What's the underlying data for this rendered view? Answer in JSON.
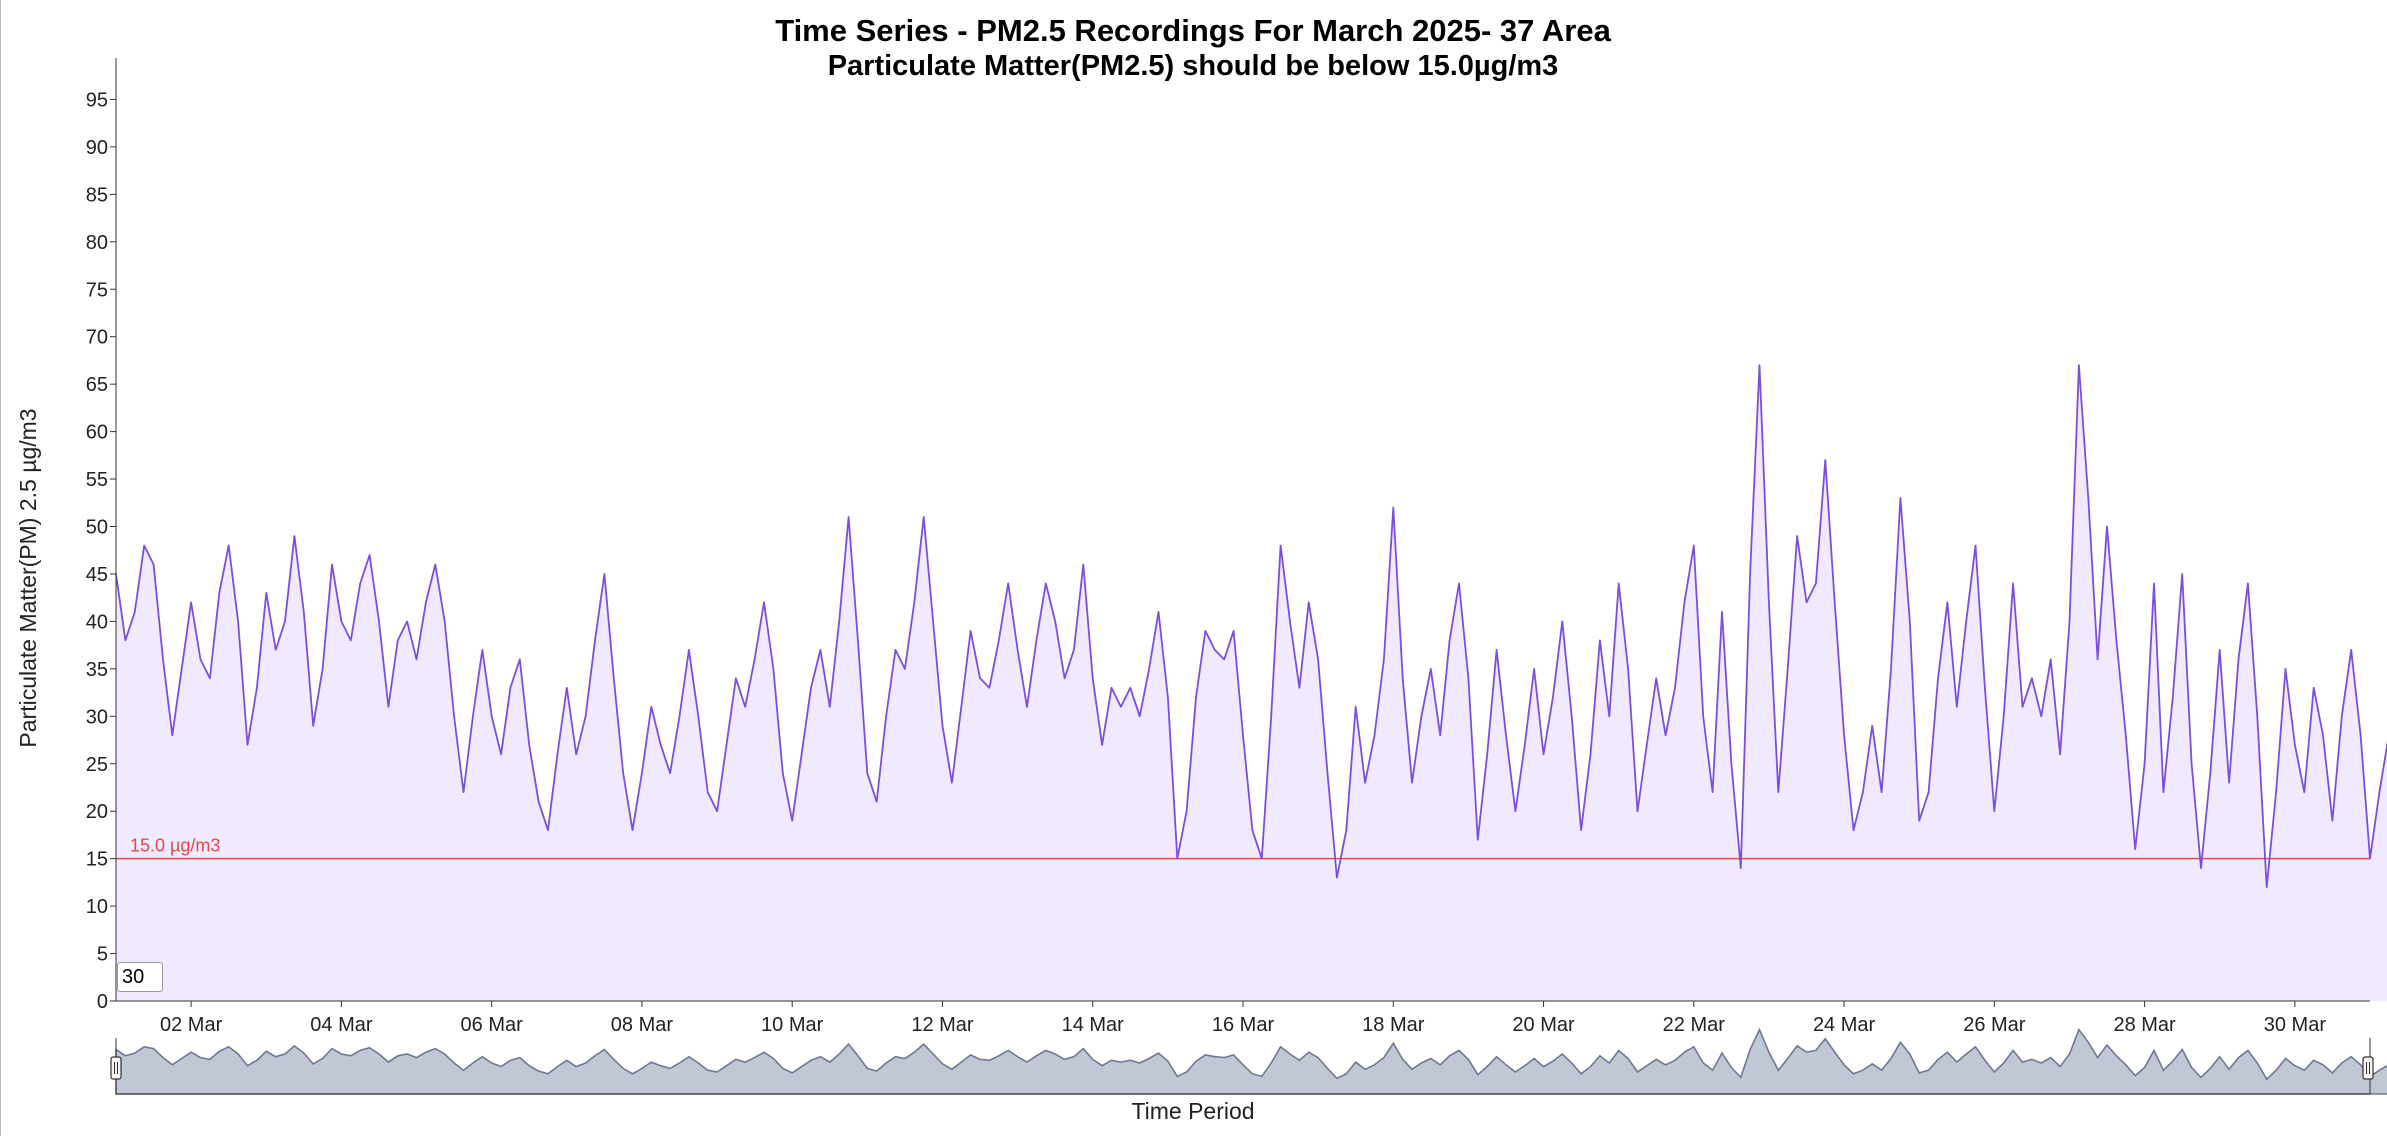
{
  "chart_data": {
    "type": "area",
    "title": "Time Series - PM2.5 Recordings For March 2025- 37 Area",
    "subtitle": "Particulate Matter(PM2.5) should be below 15.0µg/m3",
    "xlabel": "Time Period",
    "ylabel": "Particulate Matter(PM) 2.5 µg/m3",
    "xlim": [
      "2025-03-01T00:00",
      "2025-03-31T00:00"
    ],
    "ylim": [
      0,
      100
    ],
    "yticks": [
      0,
      5,
      10,
      15,
      20,
      25,
      30,
      35,
      40,
      45,
      50,
      55,
      60,
      65,
      70,
      75,
      80,
      85,
      90,
      95
    ],
    "xtick_labels": [
      "02 Mar",
      "04 Mar",
      "06 Mar",
      "08 Mar",
      "10 Mar",
      "12 Mar",
      "14 Mar",
      "16 Mar",
      "18 Mar",
      "20 Mar",
      "22 Mar",
      "24 Mar",
      "26 Mar",
      "28 Mar",
      "30 Mar"
    ],
    "threshold": {
      "value": 15,
      "label": "15.0 µg/m3",
      "color": "#e8474b"
    },
    "grid": false,
    "legend": "none",
    "series": [
      {
        "color": "#7a4fe0",
        "fill": "#f1e9fd",
        "points": [
          [
            "2025-03-01T00:00",
            45
          ],
          [
            "2025-03-01T03:00",
            38
          ],
          [
            "2025-03-01T06:00",
            41
          ],
          [
            "2025-03-01T09:00",
            48
          ],
          [
            "2025-03-01T12:00",
            46
          ],
          [
            "2025-03-01T15:00",
            36
          ],
          [
            "2025-03-01T18:00",
            28
          ],
          [
            "2025-03-01T21:00",
            35
          ],
          [
            "2025-03-02T00:00",
            42
          ],
          [
            "2025-03-02T03:00",
            36
          ],
          [
            "2025-03-02T06:00",
            34
          ],
          [
            "2025-03-02T09:00",
            43
          ],
          [
            "2025-03-02T12:00",
            48
          ],
          [
            "2025-03-02T15:00",
            40
          ],
          [
            "2025-03-02T18:00",
            27
          ],
          [
            "2025-03-02T21:00",
            33
          ],
          [
            "2025-03-03T00:00",
            43
          ],
          [
            "2025-03-03T03:00",
            37
          ],
          [
            "2025-03-03T06:00",
            40
          ],
          [
            "2025-03-03T09:00",
            49
          ],
          [
            "2025-03-03T12:00",
            41
          ],
          [
            "2025-03-03T15:00",
            29
          ],
          [
            "2025-03-03T18:00",
            35
          ],
          [
            "2025-03-03T21:00",
            46
          ],
          [
            "2025-03-04T00:00",
            40
          ],
          [
            "2025-03-04T03:00",
            38
          ],
          [
            "2025-03-04T06:00",
            44
          ],
          [
            "2025-03-04T09:00",
            47
          ],
          [
            "2025-03-04T12:00",
            40
          ],
          [
            "2025-03-04T15:00",
            31
          ],
          [
            "2025-03-04T18:00",
            38
          ],
          [
            "2025-03-04T21:00",
            40
          ],
          [
            "2025-03-05T00:00",
            36
          ],
          [
            "2025-03-05T03:00",
            42
          ],
          [
            "2025-03-05T06:00",
            46
          ],
          [
            "2025-03-05T09:00",
            40
          ],
          [
            "2025-03-05T12:00",
            30
          ],
          [
            "2025-03-05T15:00",
            22
          ],
          [
            "2025-03-05T18:00",
            30
          ],
          [
            "2025-03-05T21:00",
            37
          ],
          [
            "2025-03-06T00:00",
            30
          ],
          [
            "2025-03-06T03:00",
            26
          ],
          [
            "2025-03-06T06:00",
            33
          ],
          [
            "2025-03-06T09:00",
            36
          ],
          [
            "2025-03-06T12:00",
            27
          ],
          [
            "2025-03-06T15:00",
            21
          ],
          [
            "2025-03-06T18:00",
            18
          ],
          [
            "2025-03-06T21:00",
            26
          ],
          [
            "2025-03-07T00:00",
            33
          ],
          [
            "2025-03-07T03:00",
            26
          ],
          [
            "2025-03-07T06:00",
            30
          ],
          [
            "2025-03-07T09:00",
            38
          ],
          [
            "2025-03-07T12:00",
            45
          ],
          [
            "2025-03-07T15:00",
            34
          ],
          [
            "2025-03-07T18:00",
            24
          ],
          [
            "2025-03-07T21:00",
            18
          ],
          [
            "2025-03-08T00:00",
            24
          ],
          [
            "2025-03-08T03:00",
            31
          ],
          [
            "2025-03-08T06:00",
            27
          ],
          [
            "2025-03-08T09:00",
            24
          ],
          [
            "2025-03-08T12:00",
            30
          ],
          [
            "2025-03-08T15:00",
            37
          ],
          [
            "2025-03-08T18:00",
            30
          ],
          [
            "2025-03-08T21:00",
            22
          ],
          [
            "2025-03-09T00:00",
            20
          ],
          [
            "2025-03-09T03:00",
            27
          ],
          [
            "2025-03-09T06:00",
            34
          ],
          [
            "2025-03-09T09:00",
            31
          ],
          [
            "2025-03-09T12:00",
            36
          ],
          [
            "2025-03-09T15:00",
            42
          ],
          [
            "2025-03-09T18:00",
            35
          ],
          [
            "2025-03-09T21:00",
            24
          ],
          [
            "2025-03-10T00:00",
            19
          ],
          [
            "2025-03-10T03:00",
            26
          ],
          [
            "2025-03-10T06:00",
            33
          ],
          [
            "2025-03-10T09:00",
            37
          ],
          [
            "2025-03-10T12:00",
            31
          ],
          [
            "2025-03-10T15:00",
            40
          ],
          [
            "2025-03-10T18:00",
            51
          ],
          [
            "2025-03-10T21:00",
            38
          ],
          [
            "2025-03-11T00:00",
            24
          ],
          [
            "2025-03-11T03:00",
            21
          ],
          [
            "2025-03-11T06:00",
            30
          ],
          [
            "2025-03-11T09:00",
            37
          ],
          [
            "2025-03-11T12:00",
            35
          ],
          [
            "2025-03-11T15:00",
            42
          ],
          [
            "2025-03-11T18:00",
            51
          ],
          [
            "2025-03-11T21:00",
            40
          ],
          [
            "2025-03-12T00:00",
            29
          ],
          [
            "2025-03-12T03:00",
            23
          ],
          [
            "2025-03-12T06:00",
            31
          ],
          [
            "2025-03-12T09:00",
            39
          ],
          [
            "2025-03-12T12:00",
            34
          ],
          [
            "2025-03-12T15:00",
            33
          ],
          [
            "2025-03-12T18:00",
            38
          ],
          [
            "2025-03-12T21:00",
            44
          ],
          [
            "2025-03-13T00:00",
            37
          ],
          [
            "2025-03-13T03:00",
            31
          ],
          [
            "2025-03-13T06:00",
            38
          ],
          [
            "2025-03-13T09:00",
            44
          ],
          [
            "2025-03-13T12:00",
            40
          ],
          [
            "2025-03-13T15:00",
            34
          ],
          [
            "2025-03-13T18:00",
            37
          ],
          [
            "2025-03-13T21:00",
            46
          ],
          [
            "2025-03-14T00:00",
            34
          ],
          [
            "2025-03-14T03:00",
            27
          ],
          [
            "2025-03-14T06:00",
            33
          ],
          [
            "2025-03-14T09:00",
            31
          ],
          [
            "2025-03-14T12:00",
            33
          ],
          [
            "2025-03-14T15:00",
            30
          ],
          [
            "2025-03-14T18:00",
            35
          ],
          [
            "2025-03-14T21:00",
            41
          ],
          [
            "2025-03-15T00:00",
            32
          ],
          [
            "2025-03-15T03:00",
            15
          ],
          [
            "2025-03-15T06:00",
            20
          ],
          [
            "2025-03-15T09:00",
            32
          ],
          [
            "2025-03-15T12:00",
            39
          ],
          [
            "2025-03-15T15:00",
            37
          ],
          [
            "2025-03-15T18:00",
            36
          ],
          [
            "2025-03-15T21:00",
            39
          ],
          [
            "2025-03-16T00:00",
            28
          ],
          [
            "2025-03-16T03:00",
            18
          ],
          [
            "2025-03-16T06:00",
            15
          ],
          [
            "2025-03-16T09:00",
            30
          ],
          [
            "2025-03-16T12:00",
            48
          ],
          [
            "2025-03-16T15:00",
            40
          ],
          [
            "2025-03-16T18:00",
            33
          ],
          [
            "2025-03-16T21:00",
            42
          ],
          [
            "2025-03-17T00:00",
            36
          ],
          [
            "2025-03-17T03:00",
            24
          ],
          [
            "2025-03-17T06:00",
            13
          ],
          [
            "2025-03-17T09:00",
            18
          ],
          [
            "2025-03-17T12:00",
            31
          ],
          [
            "2025-03-17T15:00",
            23
          ],
          [
            "2025-03-17T18:00",
            28
          ],
          [
            "2025-03-17T21:00",
            36
          ],
          [
            "2025-03-18T00:00",
            52
          ],
          [
            "2025-03-18T03:00",
            34
          ],
          [
            "2025-03-18T06:00",
            23
          ],
          [
            "2025-03-18T09:00",
            30
          ],
          [
            "2025-03-18T12:00",
            35
          ],
          [
            "2025-03-18T15:00",
            28
          ],
          [
            "2025-03-18T18:00",
            38
          ],
          [
            "2025-03-18T21:00",
            44
          ],
          [
            "2025-03-19T00:00",
            34
          ],
          [
            "2025-03-19T03:00",
            17
          ],
          [
            "2025-03-19T06:00",
            26
          ],
          [
            "2025-03-19T09:00",
            37
          ],
          [
            "2025-03-19T12:00",
            28
          ],
          [
            "2025-03-19T15:00",
            20
          ],
          [
            "2025-03-19T18:00",
            27
          ],
          [
            "2025-03-19T21:00",
            35
          ],
          [
            "2025-03-20T00:00",
            26
          ],
          [
            "2025-03-20T03:00",
            32
          ],
          [
            "2025-03-20T06:00",
            40
          ],
          [
            "2025-03-20T09:00",
            30
          ],
          [
            "2025-03-20T12:00",
            18
          ],
          [
            "2025-03-20T15:00",
            26
          ],
          [
            "2025-03-20T18:00",
            38
          ],
          [
            "2025-03-20T21:00",
            30
          ],
          [
            "2025-03-21T00:00",
            44
          ],
          [
            "2025-03-21T03:00",
            35
          ],
          [
            "2025-03-21T06:00",
            20
          ],
          [
            "2025-03-21T09:00",
            27
          ],
          [
            "2025-03-21T12:00",
            34
          ],
          [
            "2025-03-21T15:00",
            28
          ],
          [
            "2025-03-21T18:00",
            33
          ],
          [
            "2025-03-21T21:00",
            42
          ],
          [
            "2025-03-22T00:00",
            48
          ],
          [
            "2025-03-22T03:00",
            30
          ],
          [
            "2025-03-22T06:00",
            22
          ],
          [
            "2025-03-22T09:00",
            41
          ],
          [
            "2025-03-22T12:00",
            25
          ],
          [
            "2025-03-22T15:00",
            14
          ],
          [
            "2025-03-22T18:00",
            45
          ],
          [
            "2025-03-22T21:00",
            67
          ],
          [
            "2025-03-23T00:00",
            42
          ],
          [
            "2025-03-23T03:00",
            22
          ],
          [
            "2025-03-23T06:00",
            35
          ],
          [
            "2025-03-23T09:00",
            49
          ],
          [
            "2025-03-23T12:00",
            42
          ],
          [
            "2025-03-23T15:00",
            44
          ],
          [
            "2025-03-23T18:00",
            57
          ],
          [
            "2025-03-23T21:00",
            42
          ],
          [
            "2025-03-24T00:00",
            28
          ],
          [
            "2025-03-24T03:00",
            18
          ],
          [
            "2025-03-24T06:00",
            22
          ],
          [
            "2025-03-24T09:00",
            29
          ],
          [
            "2025-03-24T12:00",
            22
          ],
          [
            "2025-03-24T15:00",
            35
          ],
          [
            "2025-03-24T18:00",
            53
          ],
          [
            "2025-03-24T21:00",
            40
          ],
          [
            "2025-03-25T00:00",
            19
          ],
          [
            "2025-03-25T03:00",
            22
          ],
          [
            "2025-03-25T06:00",
            34
          ],
          [
            "2025-03-25T09:00",
            42
          ],
          [
            "2025-03-25T12:00",
            31
          ],
          [
            "2025-03-25T15:00",
            40
          ],
          [
            "2025-03-25T18:00",
            48
          ],
          [
            "2025-03-25T21:00",
            33
          ],
          [
            "2025-03-26T00:00",
            20
          ],
          [
            "2025-03-26T03:00",
            30
          ],
          [
            "2025-03-26T06:00",
            44
          ],
          [
            "2025-03-26T09:00",
            31
          ],
          [
            "2025-03-26T12:00",
            34
          ],
          [
            "2025-03-26T15:00",
            30
          ],
          [
            "2025-03-26T18:00",
            36
          ],
          [
            "2025-03-26T21:00",
            26
          ],
          [
            "2025-03-27T00:00",
            40
          ],
          [
            "2025-03-27T03:00",
            67
          ],
          [
            "2025-03-27T06:00",
            53
          ],
          [
            "2025-03-27T09:00",
            36
          ],
          [
            "2025-03-27T12:00",
            50
          ],
          [
            "2025-03-27T15:00",
            38
          ],
          [
            "2025-03-27T18:00",
            28
          ],
          [
            "2025-03-27T21:00",
            16
          ],
          [
            "2025-03-28T00:00",
            25
          ],
          [
            "2025-03-28T03:00",
            44
          ],
          [
            "2025-03-28T06:00",
            22
          ],
          [
            "2025-03-28T09:00",
            32
          ],
          [
            "2025-03-28T12:00",
            45
          ],
          [
            "2025-03-28T15:00",
            25
          ],
          [
            "2025-03-28T18:00",
            14
          ],
          [
            "2025-03-28T21:00",
            24
          ],
          [
            "2025-03-29T00:00",
            37
          ],
          [
            "2025-03-29T03:00",
            23
          ],
          [
            "2025-03-29T06:00",
            36
          ],
          [
            "2025-03-29T09:00",
            44
          ],
          [
            "2025-03-29T12:00",
            30
          ],
          [
            "2025-03-29T15:00",
            12
          ],
          [
            "2025-03-29T18:00",
            22
          ],
          [
            "2025-03-29T21:00",
            35
          ],
          [
            "2025-03-30T00:00",
            27
          ],
          [
            "2025-03-30T03:00",
            22
          ],
          [
            "2025-03-30T06:00",
            33
          ],
          [
            "2025-03-30T09:00",
            28
          ],
          [
            "2025-03-30T12:00",
            19
          ],
          [
            "2025-03-30T15:00",
            30
          ],
          [
            "2025-03-30T18:00",
            37
          ],
          [
            "2025-03-30T21:00",
            28
          ],
          [
            "2025-03-31T00:00",
            15
          ],
          [
            "2025-03-31T03:00",
            22
          ],
          [
            "2025-03-31T06:00",
            28
          ],
          [
            "2025-03-31T09:00",
            26
          ]
        ]
      }
    ]
  },
  "controls": {
    "zoom_value": "30"
  }
}
